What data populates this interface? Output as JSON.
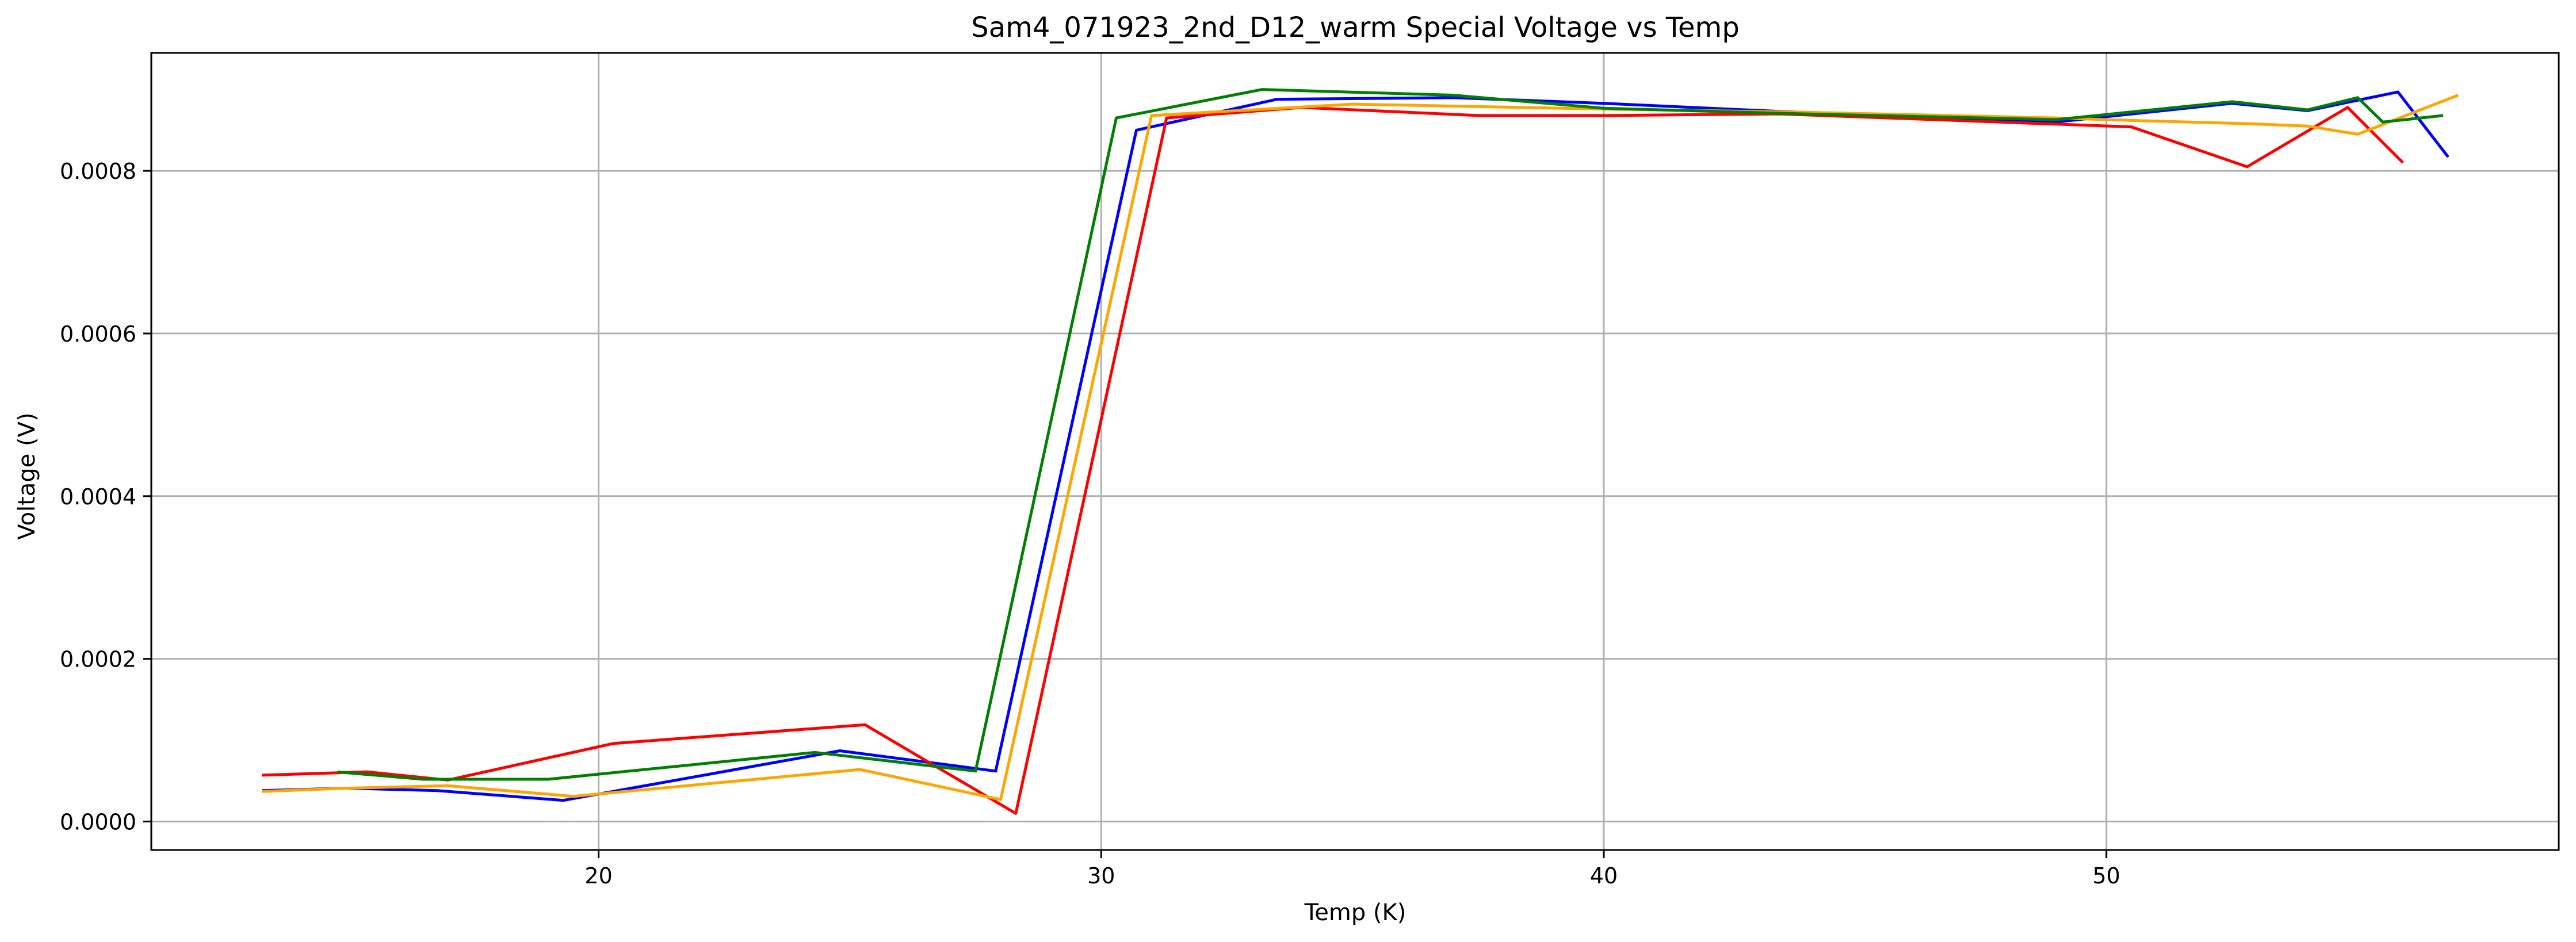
{
  "chart_data": {
    "type": "line",
    "title": "Sam4_071923_2nd_D12_warm Special Voltage vs Temp",
    "xlabel": "Temp (K)",
    "ylabel": "Voltage (V)",
    "xlim": [
      11.1,
      59.0
    ],
    "ylim": [
      -3.5e-05,
      0.000945
    ],
    "xticks": [
      20,
      30,
      40,
      50
    ],
    "xtick_labels": [
      "20",
      "30",
      "40",
      "50"
    ],
    "yticks": [
      0.0,
      0.0002,
      0.0004,
      0.0006,
      0.0008
    ],
    "ytick_labels": [
      "0.0000",
      "0.0002",
      "0.0004",
      "0.0006",
      "0.0008"
    ],
    "grid": true,
    "legend": "none",
    "series": [
      {
        "color": "#0000ff",
        "points": [
          [
            13.3,
            3.8e-05
          ],
          [
            15.0,
            4.1e-05
          ],
          [
            16.8,
            3.8e-05
          ],
          [
            19.3,
            2.6e-05
          ],
          [
            24.8,
            8.7e-05
          ],
          [
            27.9,
            6.2e-05
          ],
          [
            30.7,
            0.00085
          ],
          [
            33.5,
            0.000888
          ],
          [
            37.0,
            0.00089
          ],
          [
            40.0,
            0.000883
          ],
          [
            43.5,
            0.000873
          ],
          [
            49.0,
            0.00086
          ],
          [
            52.5,
            0.000883
          ],
          [
            54.0,
            0.000874
          ],
          [
            55.8,
            0.000897
          ],
          [
            56.8,
            0.000817
          ]
        ]
      },
      {
        "color": "#ff0000",
        "points": [
          [
            13.3,
            5.7e-05
          ],
          [
            15.4,
            6.1e-05
          ],
          [
            17.0,
            5.1e-05
          ],
          [
            20.3,
            9.6e-05
          ],
          [
            25.3,
            0.000119
          ],
          [
            28.3,
            1e-05
          ],
          [
            31.3,
            0.000865
          ],
          [
            34.0,
            0.000878
          ],
          [
            37.5,
            0.000868
          ],
          [
            40.0,
            0.000868
          ],
          [
            43.5,
            0.00087
          ],
          [
            50.5,
            0.000854
          ],
          [
            52.8,
            0.000805
          ],
          [
            54.8,
            0.000878
          ],
          [
            55.9,
            0.00081
          ]
        ]
      },
      {
        "color": "#ffa500",
        "points": [
          [
            13.3,
            3.7e-05
          ],
          [
            15.0,
            4.1e-05
          ],
          [
            17.0,
            4.4e-05
          ],
          [
            19.5,
            3.1e-05
          ],
          [
            25.2,
            6.4e-05
          ],
          [
            28.0,
            2.7e-05
          ],
          [
            31.0,
            0.000868
          ],
          [
            35.0,
            0.000882
          ],
          [
            40.0,
            0.000876
          ],
          [
            44.0,
            0.000872
          ],
          [
            49.0,
            0.000865
          ],
          [
            50.5,
            0.000862
          ],
          [
            52.8,
            0.000858
          ],
          [
            54.0,
            0.000855
          ],
          [
            55.0,
            0.000845
          ],
          [
            57.0,
            0.000893
          ]
        ]
      },
      {
        "color": "#008000",
        "points": [
          [
            14.8,
            6.1e-05
          ],
          [
            16.5,
            5.2e-05
          ],
          [
            19.0,
            5.2e-05
          ],
          [
            24.3,
            8.5e-05
          ],
          [
            27.5,
            6.2e-05
          ],
          [
            30.3,
            0.000865
          ],
          [
            33.2,
            0.0009
          ],
          [
            37.0,
            0.000893
          ],
          [
            40.0,
            0.000877
          ],
          [
            44.0,
            0.00087
          ],
          [
            49.0,
            0.000863
          ],
          [
            52.5,
            0.000885
          ],
          [
            54.0,
            0.000875
          ],
          [
            55.0,
            0.00089
          ],
          [
            55.5,
            0.00086
          ],
          [
            56.7,
            0.000868
          ]
        ]
      }
    ]
  }
}
